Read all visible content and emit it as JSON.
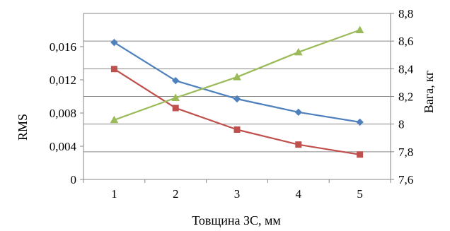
{
  "chart_data": {
    "type": "line",
    "title": "",
    "xlabel": "Товщина ЗС, мм",
    "ylabel": "RMS",
    "y2label": "Вага, кг",
    "categories": [
      "1",
      "2",
      "3",
      "4",
      "5"
    ],
    "ylim": [
      0,
      0.02
    ],
    "y2lim": [
      7.6,
      8.8
    ],
    "y_ticks": [
      "0",
      "0,004",
      "0,008",
      "0,012",
      "0,016"
    ],
    "y2_ticks": [
      "7,6",
      "7,8",
      "8",
      "8,2",
      "8,4",
      "8,6",
      "8,8"
    ],
    "grid": true,
    "legend": "none",
    "series": [
      {
        "axis": "left",
        "color": "#4F81BD",
        "marker": "diamond",
        "values": [
          0.0165,
          0.0119,
          0.0097,
          0.0081,
          0.0069
        ]
      },
      {
        "axis": "left",
        "color": "#C0504D",
        "marker": "square",
        "values": [
          0.0133,
          0.0086,
          0.006,
          0.0042,
          0.003
        ]
      },
      {
        "axis": "right",
        "color": "#9BBB59",
        "marker": "triangle",
        "values": [
          8.03,
          8.19,
          8.34,
          8.52,
          8.68
        ]
      }
    ]
  }
}
